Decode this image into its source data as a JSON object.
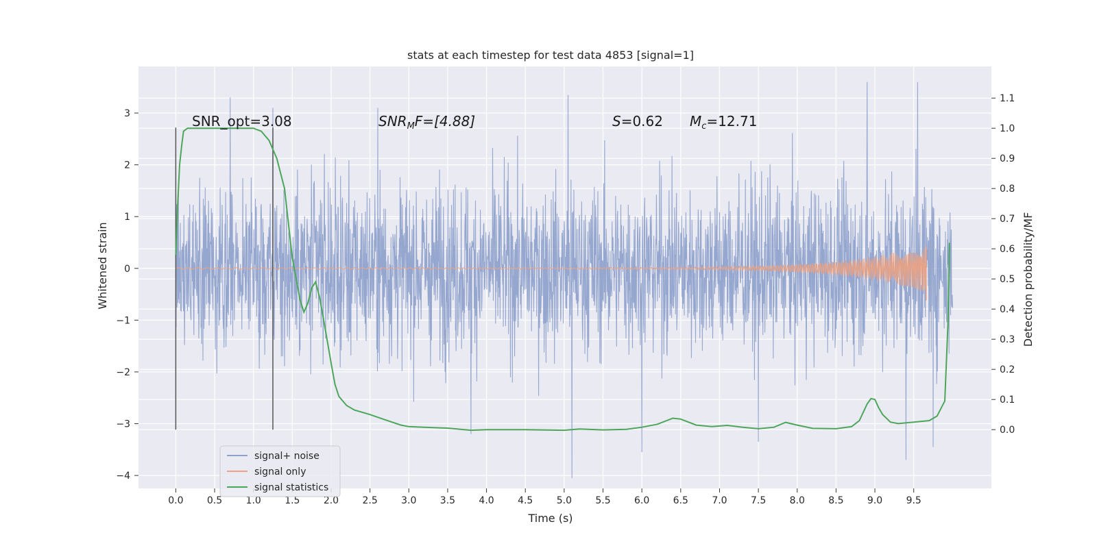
{
  "chart_data": {
    "type": "line",
    "title": "stats at each timestep for test data 4853 [signal=1]",
    "xlabel": "Time (s)",
    "ylabel": "Whitened strain",
    "y2label": "Detection probability/MF",
    "xlim": [
      -0.48,
      10.5
    ],
    "ylim": [
      -4.25,
      3.9
    ],
    "y2lim": [
      -0.195,
      1.205
    ],
    "x_ticks": [
      "0.0",
      "0.5",
      "1.0",
      "1.5",
      "2.0",
      "2.5",
      "3.0",
      "3.5",
      "4.0",
      "4.5",
      "5.0",
      "5.5",
      "6.0",
      "6.5",
      "7.0",
      "7.5",
      "8.0",
      "8.5",
      "9.0",
      "9.5"
    ],
    "y_ticks": [
      "3",
      "2",
      "1",
      "0",
      "−1",
      "−2",
      "−3",
      "−4"
    ],
    "y2_ticks": [
      "1.1",
      "1.0",
      "0.9",
      "0.8",
      "0.7",
      "0.6",
      "0.5",
      "0.4",
      "0.3",
      "0.2",
      "0.1",
      "0.0"
    ],
    "grid": true,
    "legend_placement": "lower-left",
    "annotations": {
      "snr_opt": "SNR_opt=3.08",
      "snr_mf_sym": "SNR",
      "snr_mf_sub": "M",
      "snr_mf_val": "F=[4.88]",
      "s_sym": "S",
      "s_val": "=0.62",
      "mc_sym": "M",
      "mc_sub": "c",
      "mc_val": "=12.71"
    },
    "vlines_x": [
      0.0,
      1.25
    ],
    "series": [
      {
        "name": "signal+ noise",
        "color": "#8da0cb",
        "description_values": "whitened noise, spans roughly -2.5..2.5 with spikes to +3.6 / -4.0",
        "time_range": [
          0.0,
          10.0
        ],
        "spikes": [
          [
            0.7,
            3.3
          ],
          [
            5.1,
            -4.05
          ],
          [
            5.05,
            3.35
          ],
          [
            8.9,
            3.6
          ],
          [
            9.4,
            -3.7
          ],
          [
            9.55,
            3.6
          ],
          [
            9.75,
            -3.45
          ],
          [
            6.0,
            -3.55
          ],
          [
            7.5,
            -3.35
          ],
          [
            3.8,
            -3.2
          ],
          [
            1.25,
            3.1
          ],
          [
            2.6,
            3.1
          ]
        ]
      },
      {
        "name": "signal only",
        "color": "#e8a285",
        "description_values": "chirp signal, near zero growing to ~0.45 amplitude near t=9.65",
        "time_range": [
          0.0,
          9.66
        ],
        "end_amplitude": 0.45
      },
      {
        "name": "signal statistics",
        "color": "#4ca65a",
        "x": [
          0.0,
          0.02,
          0.05,
          0.08,
          0.1,
          0.15,
          0.25,
          0.4,
          0.6,
          0.8,
          1.0,
          1.1,
          1.2,
          1.25,
          1.3,
          1.4,
          1.5,
          1.6,
          1.65,
          1.7,
          1.75,
          1.8,
          1.85,
          1.9,
          2.0,
          2.05,
          2.1,
          2.2,
          2.3,
          2.5,
          2.7,
          2.9,
          3.0,
          3.2,
          3.5,
          3.8,
          4.0,
          4.5,
          5.0,
          5.2,
          5.5,
          5.8,
          6.0,
          6.2,
          6.4,
          6.5,
          6.7,
          6.9,
          7.1,
          7.3,
          7.5,
          7.7,
          7.85,
          8.0,
          8.2,
          8.5,
          8.7,
          8.8,
          8.9,
          8.95,
          9.0,
          9.05,
          9.1,
          9.2,
          9.3,
          9.5,
          9.7,
          9.8,
          9.9,
          9.94,
          9.96
        ],
        "values": [
          0.58,
          0.72,
          0.88,
          0.95,
          0.99,
          1.0,
          1.0,
          1.0,
          1.0,
          1.0,
          1.0,
          0.99,
          0.96,
          0.93,
          0.9,
          0.8,
          0.57,
          0.43,
          0.39,
          0.42,
          0.47,
          0.49,
          0.44,
          0.37,
          0.22,
          0.15,
          0.11,
          0.08,
          0.065,
          0.05,
          0.032,
          0.015,
          0.01,
          0.008,
          0.005,
          -0.002,
          0.0,
          0.0,
          -0.002,
          0.002,
          -0.001,
          0.001,
          0.008,
          0.018,
          0.038,
          0.035,
          0.015,
          0.01,
          0.014,
          0.008,
          0.003,
          0.008,
          0.024,
          0.015,
          0.004,
          0.003,
          0.01,
          0.03,
          0.085,
          0.103,
          0.1,
          0.072,
          0.05,
          0.025,
          0.02,
          0.025,
          0.03,
          0.045,
          0.095,
          0.35,
          0.62
        ]
      }
    ]
  },
  "colors": {
    "axes_bg": "#eaeaf2",
    "grid": "#ffffff",
    "text": "#262626",
    "vline": "#555555"
  }
}
